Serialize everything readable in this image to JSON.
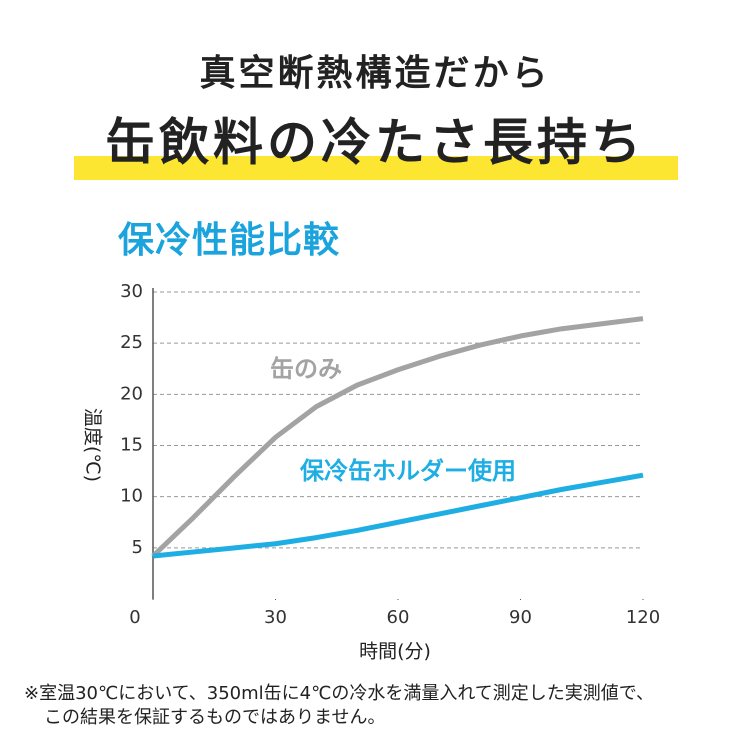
{
  "headline": "真空断熱構造だから",
  "subheadline": "缶飲料の冷たさ長持ち",
  "notes": [
    "※室温30℃において、350ml缶に4℃の冷水を満量入れて測定した実測値で、",
    "この結果を保証するものではありません。"
  ],
  "chart_data": {
    "type": "line",
    "title": "保冷性能比較",
    "x": [
      0,
      10,
      20,
      30,
      40,
      50,
      60,
      70,
      80,
      90,
      100,
      110,
      120
    ],
    "series": [
      {
        "name": "缶のみ",
        "color": "#a3a3a3",
        "values": [
          4.2,
          8,
          12,
          15.8,
          18.8,
          20.9,
          22.4,
          23.7,
          24.8,
          25.7,
          26.4,
          26.9,
          27.4
        ]
      },
      {
        "name": "保冷缶ホルダー使用",
        "color": "#1eaee4",
        "values": [
          4.2,
          4.6,
          5,
          5.4,
          6,
          6.7,
          7.5,
          8.3,
          9.1,
          9.9,
          10.7,
          11.4,
          12.1
        ]
      }
    ],
    "xlabel": "時間(分)",
    "ylabel": "温度(℃)",
    "xlim": [
      0,
      120
    ],
    "xticks": [
      0,
      30,
      60,
      90,
      120
    ],
    "ylim": [
      0,
      30
    ],
    "yticks": [
      5,
      10,
      15,
      20,
      25,
      30
    ],
    "grid": true
  }
}
